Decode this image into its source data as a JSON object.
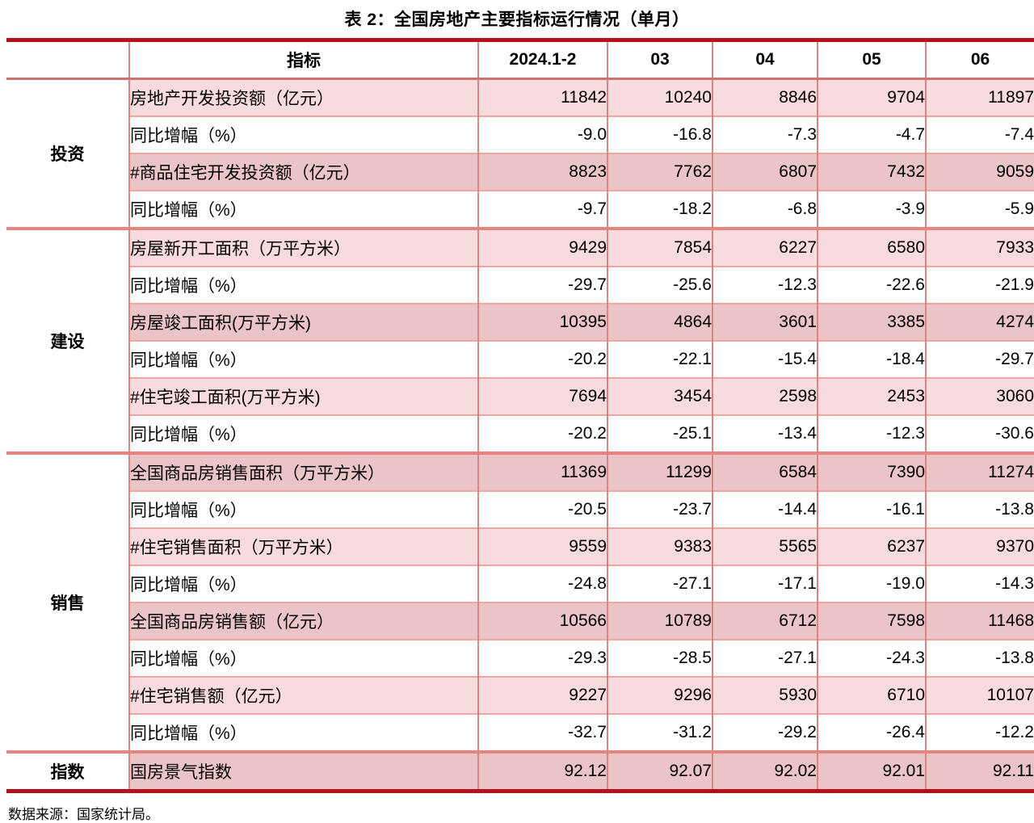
{
  "title": "表 2：全国房地产主要指标运行情况（单月）",
  "source_note": "数据来源：国家统计局。",
  "colors": {
    "thick_rule": "#b3121a",
    "group_separator": "#e8837e",
    "header_underline": "#c8736f",
    "grid_line": "#e0827e",
    "thin_row_line": "#efa6a2",
    "light_pink_row": "#f8dbde",
    "dark_pink_row": "#eac4c7"
  },
  "chart_data": {
    "type": "table",
    "title": "表 2：全国房地产主要指标运行情况（单月）",
    "columns": [
      "指标",
      "2024.1-2",
      "03",
      "04",
      "05",
      "06"
    ],
    "groups": [
      {
        "group": "投资",
        "rows": [
          {
            "label": "房地产开发投资额（亿元）",
            "shade": "light",
            "values": [
              "11842",
              "10240",
              "8846",
              "9704",
              "11897"
            ]
          },
          {
            "label": "同比增幅（%）",
            "shade": "white",
            "values": [
              "-9.0",
              "-16.8",
              "-7.3",
              "-4.7",
              "-7.4"
            ]
          },
          {
            "label": "#商品住宅开发投资额（亿元）",
            "shade": "dark",
            "values": [
              "8823",
              "7762",
              "6807",
              "7432",
              "9059"
            ]
          },
          {
            "label": "同比增幅（%）",
            "shade": "white",
            "values": [
              "-9.7",
              "-18.2",
              "-6.8",
              "-3.9",
              "-5.9"
            ]
          }
        ]
      },
      {
        "group": "建设",
        "rows": [
          {
            "label": "房屋新开工面积（万平方米）",
            "shade": "light",
            "values": [
              "9429",
              "7854",
              "6227",
              "6580",
              "7933"
            ]
          },
          {
            "label": "同比增幅（%）",
            "shade": "white",
            "values": [
              "-29.7",
              "-25.6",
              "-12.3",
              "-22.6",
              "-21.9"
            ]
          },
          {
            "label": "房屋竣工面积(万平方米)",
            "shade": "dark",
            "values": [
              "10395",
              "4864",
              "3601",
              "3385",
              "4274"
            ]
          },
          {
            "label": "同比增幅（%）",
            "shade": "white",
            "values": [
              "-20.2",
              "-22.1",
              "-15.4",
              "-18.4",
              "-29.7"
            ]
          },
          {
            "label": "#住宅竣工面积(万平方米)",
            "shade": "light",
            "values": [
              "7694",
              "3454",
              "2598",
              "2453",
              "3060"
            ]
          },
          {
            "label": "同比增幅（%）",
            "shade": "white",
            "values": [
              "-20.2",
              "-25.1",
              "-13.4",
              "-12.3",
              "-30.6"
            ]
          }
        ]
      },
      {
        "group": "销售",
        "rows": [
          {
            "label": "全国商品房销售面积（万平方米）",
            "shade": "dark",
            "values": [
              "11369",
              "11299",
              "6584",
              "7390",
              "11274"
            ]
          },
          {
            "label": "同比增幅（%）",
            "shade": "white",
            "values": [
              "-20.5",
              "-23.7",
              "-14.4",
              "-16.1",
              "-13.8"
            ]
          },
          {
            "label": "#住宅销售面积（万平方米）",
            "shade": "light",
            "values": [
              "9559",
              "9383",
              "5565",
              "6237",
              "9370"
            ]
          },
          {
            "label": "同比增幅（%）",
            "shade": "white",
            "values": [
              "-24.8",
              "-27.1",
              "-17.1",
              "-19.0",
              "-14.3"
            ]
          },
          {
            "label": "全国商品房销售额（亿元）",
            "shade": "dark",
            "values": [
              "10566",
              "10789",
              "6712",
              "7598",
              "11468"
            ]
          },
          {
            "label": "同比增幅（%）",
            "shade": "white",
            "values": [
              "-29.3",
              "-28.5",
              "-27.1",
              "-24.3",
              "-13.8"
            ]
          },
          {
            "label": "#住宅销售额（亿元）",
            "shade": "light",
            "values": [
              "9227",
              "9296",
              "5930",
              "6710",
              "10107"
            ]
          },
          {
            "label": "同比增幅（%）",
            "shade": "white",
            "values": [
              "-32.7",
              "-31.2",
              "-29.2",
              "-26.4",
              "-12.2"
            ]
          }
        ]
      },
      {
        "group": "指数",
        "rows": [
          {
            "label": "国房景气指数",
            "shade": "dark",
            "values": [
              "92.12",
              "92.07",
              "92.02",
              "92.01",
              "92.11"
            ]
          }
        ]
      }
    ],
    "source": "数据来源：国家统计局。"
  }
}
